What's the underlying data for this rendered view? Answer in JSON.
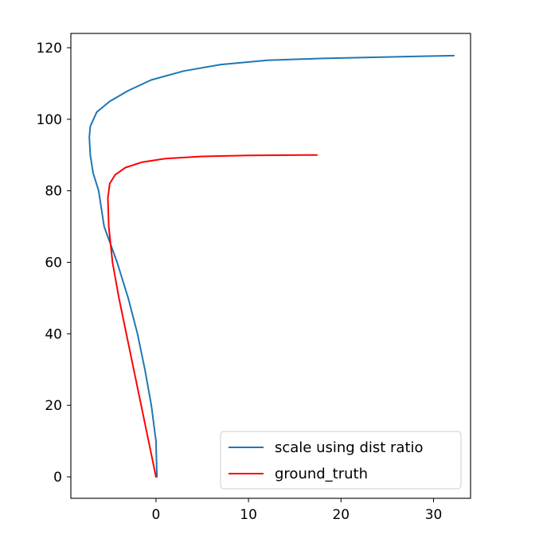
{
  "chart_data": {
    "type": "line",
    "title": "",
    "xlabel": "",
    "ylabel": "",
    "xlim": [
      -9.2,
      34
    ],
    "ylim": [
      -6,
      124
    ],
    "x_ticks": [
      0,
      10,
      20,
      30
    ],
    "y_ticks": [
      0,
      20,
      40,
      60,
      80,
      100,
      120
    ],
    "grid": false,
    "legend_position": "lower-right",
    "series": [
      {
        "name": "scale using dist ratio",
        "color": "#1f77b4",
        "x": [
          0.1,
          0.0,
          -0.5,
          -1.2,
          -2.0,
          -3.0,
          -4.2,
          -5.6,
          -6.2,
          -6.8,
          -7.1,
          -7.2,
          -7.1,
          -6.4,
          -5.0,
          -3.0,
          -0.5,
          3.0,
          7.0,
          12.0,
          18.0,
          25.0,
          32.2
        ],
        "y": [
          0,
          10,
          20,
          30,
          40,
          50,
          60,
          70,
          80,
          85,
          90,
          95,
          98,
          102,
          105,
          108,
          111,
          113.5,
          115.3,
          116.5,
          117.0,
          117.4,
          117.8
        ]
      },
      {
        "name": "ground_truth",
        "color": "#ff0000",
        "x": [
          0.0,
          -0.8,
          -1.6,
          -2.4,
          -3.2,
          -4.0,
          -4.7,
          -5.1,
          -5.2,
          -5.0,
          -4.4,
          -3.3,
          -1.5,
          1.0,
          5.0,
          10.0,
          17.4
        ],
        "y": [
          0,
          10,
          20,
          30,
          40,
          50,
          60,
          70,
          78,
          82,
          84.5,
          86.5,
          88,
          89,
          89.6,
          89.9,
          90.0
        ]
      }
    ]
  }
}
